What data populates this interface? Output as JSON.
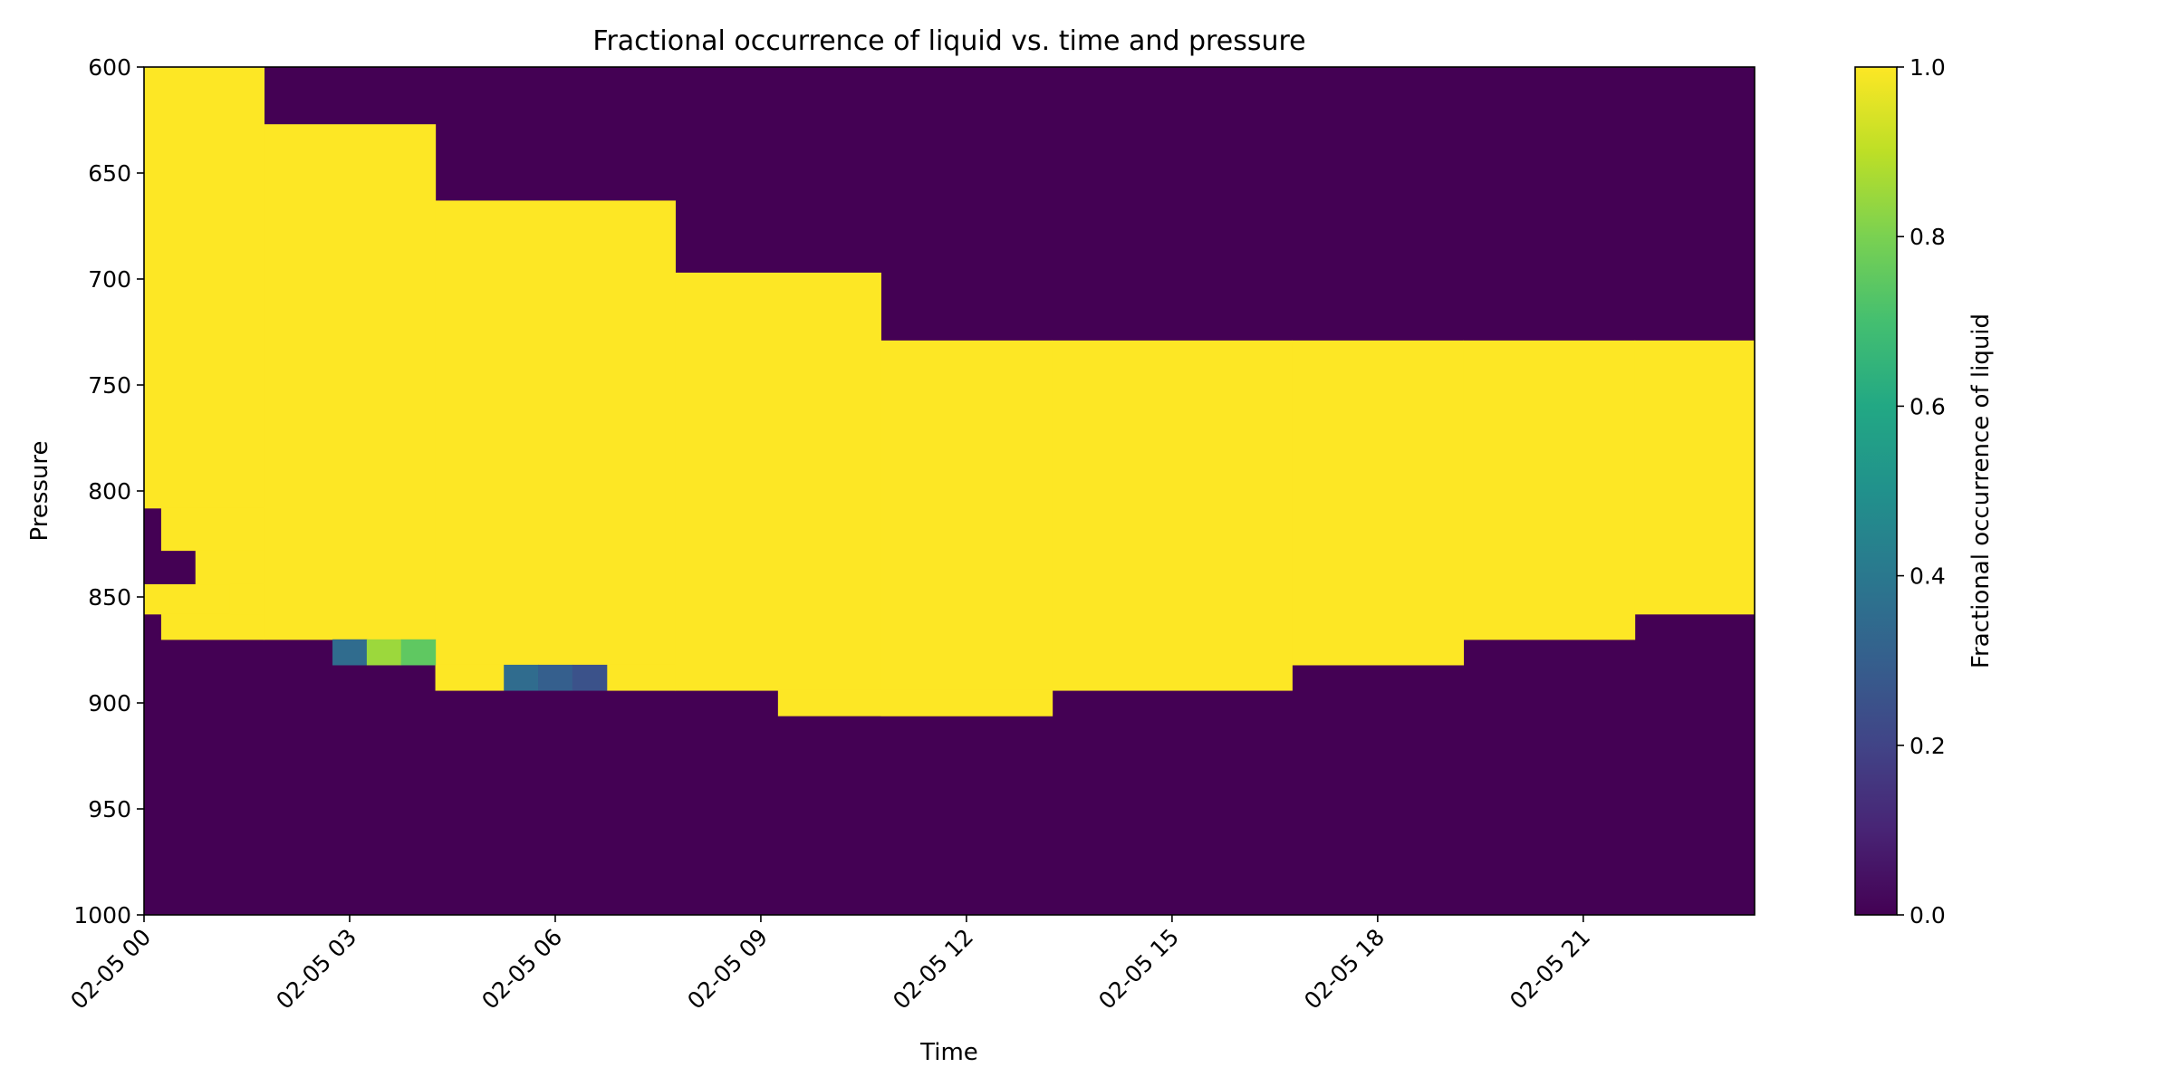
{
  "chart_data": {
    "type": "heatmap",
    "title": "Fractional occurrence of liquid vs. time and pressure",
    "xlabel": "Time",
    "ylabel": "Pressure",
    "y_inverted": true,
    "ylim": [
      1000,
      600
    ],
    "yticks": [
      600,
      650,
      700,
      750,
      800,
      850,
      900,
      950,
      1000
    ],
    "x_range_hours": [
      0,
      23.5
    ],
    "xticks": [
      {
        "hour": 0,
        "label": "02-05 00"
      },
      {
        "hour": 3,
        "label": "02-05 03"
      },
      {
        "hour": 6,
        "label": "02-05 06"
      },
      {
        "hour": 9,
        "label": "02-05 09"
      },
      {
        "hour": 12,
        "label": "02-05 12"
      },
      {
        "hour": 15,
        "label": "02-05 15"
      },
      {
        "hour": 18,
        "label": "02-05 18"
      },
      {
        "hour": 21,
        "label": "02-05 21"
      }
    ],
    "colormap": "viridis",
    "colorbar": {
      "label": "Fractional occurrence of liquid",
      "range": [
        0,
        1
      ],
      "ticks": [
        {
          "value": 0,
          "label": "0.0"
        },
        {
          "value": 0.2,
          "label": "0.2"
        },
        {
          "value": 0.4,
          "label": "0.4"
        },
        {
          "value": 0.6,
          "label": "0.6"
        },
        {
          "value": 0.8,
          "label": "0.8"
        },
        {
          "value": 1,
          "label": "1.0"
        }
      ]
    },
    "background_value": 0,
    "liquid_regions": [
      {
        "hours": [
          0,
          1.75
        ],
        "pressure": [
          600,
          808
        ],
        "value": 1
      },
      {
        "hours": [
          0,
          1.75
        ],
        "pressure": [
          844,
          858
        ],
        "value": 1
      },
      {
        "hours": [
          0.25,
          1.75
        ],
        "pressure": [
          808,
          828
        ],
        "value": 1
      },
      {
        "hours": [
          0.25,
          1.75
        ],
        "pressure": [
          858,
          870
        ],
        "value": 1
      },
      {
        "hours": [
          0.75,
          1.75
        ],
        "pressure": [
          828,
          844
        ],
        "value": 1
      },
      {
        "hours": [
          1.25,
          1.75
        ],
        "pressure": [
          844,
          858
        ],
        "value": 1
      },
      {
        "hours": [
          1.75,
          4.25
        ],
        "pressure": [
          627,
          870
        ],
        "value": 1
      },
      {
        "hours": [
          4.25,
          7.75
        ],
        "pressure": [
          663,
          882
        ],
        "value": 1
      },
      {
        "hours": [
          7.75,
          10.75
        ],
        "pressure": [
          697,
          894
        ],
        "value": 1
      },
      {
        "hours": [
          10.75,
          13.25
        ],
        "pressure": [
          729,
          906
        ],
        "value": 1
      },
      {
        "hours": [
          13.25,
          16.75
        ],
        "pressure": [
          729,
          894
        ],
        "value": 1
      },
      {
        "hours": [
          16.75,
          19.25
        ],
        "pressure": [
          729,
          882
        ],
        "value": 1
      },
      {
        "hours": [
          19.25,
          21.75
        ],
        "pressure": [
          729,
          870
        ],
        "value": 1
      },
      {
        "hours": [
          21.75,
          23.5
        ],
        "pressure": [
          729,
          858
        ],
        "value": 1
      },
      {
        "hours": [
          4.25,
          5.25
        ],
        "pressure": [
          882,
          894
        ],
        "value": 1
      },
      {
        "hours": [
          6.75,
          7.75
        ],
        "pressure": [
          882,
          894
        ],
        "value": 1
      },
      {
        "hours": [
          2.75,
          3.25
        ],
        "pressure": [
          870,
          882
        ],
        "value": 0.35
      },
      {
        "hours": [
          3.25,
          3.75
        ],
        "pressure": [
          870,
          882
        ],
        "value": 0.85
      },
      {
        "hours": [
          3.75,
          4.25
        ],
        "pressure": [
          870,
          882
        ],
        "value": 0.75
      },
      {
        "hours": [
          5.25,
          5.75
        ],
        "pressure": [
          882,
          894
        ],
        "value": 0.35
      },
      {
        "hours": [
          5.75,
          6.25
        ],
        "pressure": [
          882,
          894
        ],
        "value": 0.3
      },
      {
        "hours": [
          6.25,
          6.75
        ],
        "pressure": [
          882,
          894
        ],
        "value": 0.25
      },
      {
        "hours": [
          9.25,
          13.25
        ],
        "pressure": [
          894,
          906
        ],
        "value": 1
      }
    ]
  }
}
